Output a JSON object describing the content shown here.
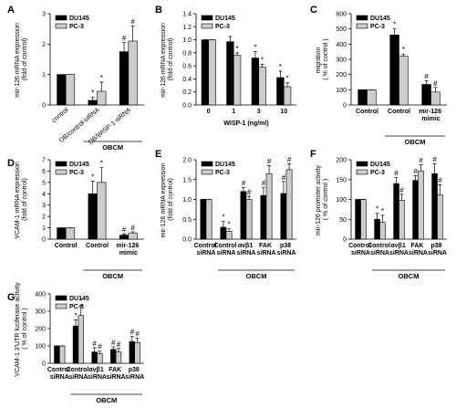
{
  "chart_data": [
    {
      "type": "bar",
      "title": "A",
      "ylabel": "mir-126 mRNA expression (fold of control)",
      "group_label": "OBCM",
      "categories": [
        "control",
        "OB/control-siRNA",
        "OB/WISP-1-siRNA"
      ],
      "ylim": [
        0,
        3
      ],
      "yticks": [
        0,
        1,
        2,
        3
      ],
      "series": [
        {
          "name": "DU145",
          "color": "#000000",
          "values": [
            1,
            0.15,
            1.75
          ],
          "errors": [
            0,
            0.1,
            0.3
          ],
          "significance": [
            null,
            "*",
            "#"
          ]
        },
        {
          "name": "PC-3",
          "color": "#cccccc",
          "values": [
            1,
            0.45,
            2.1
          ],
          "errors": [
            0,
            0.3,
            0.5
          ],
          "significance": [
            null,
            "*",
            "#"
          ]
        }
      ]
    },
    {
      "type": "bar",
      "title": "B",
      "ylabel": "mir-126 mRNA expression (fold of control)",
      "xlabel": "WISP-1 (ng/ml)",
      "categories": [
        "0",
        "1",
        "3",
        "10"
      ],
      "ylim": [
        0,
        1.4
      ],
      "yticks": [
        {
          "value": 0,
          "label": "0.0"
        },
        {
          "value": 0.2,
          "label": "0.2"
        },
        {
          "value": 0.4,
          "label": "0.4"
        },
        {
          "value": 0.6,
          "label": "0.6"
        },
        {
          "value": 0.8,
          "label": "0.8"
        },
        {
          "value": 1,
          "label": "1.0"
        },
        {
          "value": 1.2,
          "label": "1.2"
        },
        {
          "value": 1.4,
          "label": "1.4"
        }
      ],
      "series": [
        {
          "name": "DU145",
          "color": "#000000",
          "values": [
            1,
            0.97,
            0.72,
            0.42
          ],
          "errors": [
            0,
            0.08,
            0.1,
            0.1
          ],
          "significance": [
            null,
            null,
            "*",
            "*"
          ]
        },
        {
          "name": "PC-3",
          "color": "#cccccc",
          "values": [
            1,
            0.76,
            0.58,
            0.28
          ],
          "errors": [
            0,
            0.04,
            0.04,
            0.06
          ],
          "significance": [
            null,
            "*",
            "*",
            "*"
          ]
        }
      ]
    },
    {
      "type": "bar",
      "title": "C",
      "ylabel": "migration ( % of control )",
      "group_label": "OBCM",
      "categories": [
        "Control",
        "Control",
        "mir-126 mimic"
      ],
      "ylim": [
        0,
        600
      ],
      "yticks": [
        0,
        100,
        200,
        300,
        400,
        500,
        600
      ],
      "series": [
        {
          "name": "DU145",
          "color": "#000000",
          "values": [
            100,
            460,
            135
          ],
          "errors": [
            0,
            40,
            25
          ],
          "significance": [
            null,
            "*",
            "#"
          ]
        },
        {
          "name": "PC-3",
          "color": "#cccccc",
          "values": [
            100,
            320,
            85
          ],
          "errors": [
            0,
            15,
            30
          ],
          "significance": [
            null,
            "*",
            "#"
          ]
        }
      ]
    },
    {
      "type": "bar",
      "title": "D",
      "ylabel": "VCAM-1 mRNA expression (fold of control)",
      "group_label": "OBCM",
      "categories": [
        "Control",
        "Control",
        "mir-126 mimic"
      ],
      "ylim": [
        0,
        7
      ],
      "yticks": [
        0,
        1,
        2,
        3,
        4,
        5,
        6,
        7
      ],
      "series": [
        {
          "name": "DU145",
          "color": "#000000",
          "values": [
            1,
            4,
            0.35
          ],
          "errors": [
            0,
            1.1,
            0.1
          ],
          "significance": [
            null,
            "*",
            "#"
          ]
        },
        {
          "name": "PC-3",
          "color": "#cccccc",
          "values": [
            1,
            5,
            0.55
          ],
          "errors": [
            0,
            1.3,
            0.1
          ],
          "significance": [
            null,
            "*",
            "#"
          ]
        }
      ]
    },
    {
      "type": "bar",
      "title": "E",
      "ylabel": "mir-126 mRNA expression (fold of control)",
      "group_label": "OBCM",
      "categories": [
        "Control siRNA",
        "Control siRNA",
        "αvβ1 siRNA",
        "FAK siRNA",
        "p38 siRNA"
      ],
      "ylim": [
        0,
        2
      ],
      "yticks": [
        {
          "value": 0,
          "label": "0.0"
        },
        {
          "value": 0.5,
          "label": "0.5"
        },
        {
          "value": 1,
          "label": "1.0"
        },
        {
          "value": 1.5,
          "label": "1.5"
        },
        {
          "value": 2,
          "label": "2.0"
        }
      ],
      "series": [
        {
          "name": "DU145",
          "color": "#000000",
          "values": [
            1,
            0.3,
            1.2,
            1.1,
            1.15
          ],
          "errors": [
            0,
            0.15,
            0.1,
            0.2,
            0.3
          ],
          "significance": [
            null,
            "*",
            "#",
            "#",
            "#"
          ]
        },
        {
          "name": "PC-3",
          "color": "#cccccc",
          "values": [
            1,
            0.2,
            1.0,
            1.65,
            1.75
          ],
          "errors": [
            0,
            0.06,
            0.08,
            0.2,
            0.15
          ],
          "significance": [
            null,
            "*",
            "#",
            "#",
            "#"
          ]
        }
      ]
    },
    {
      "type": "bar",
      "title": "F",
      "ylabel": "mir-126 promoter activity ( % of control )",
      "group_label": "OBCM",
      "categories": [
        "Control siRNA",
        "Control siRNA",
        "αvβ1 siRNA",
        "FAK siRNA",
        "p38 siRNA"
      ],
      "ylim": [
        0,
        200
      ],
      "yticks": [
        0,
        50,
        100,
        150,
        200
      ],
      "series": [
        {
          "name": "DU145",
          "color": "#000000",
          "values": [
            100,
            50,
            140,
            148,
            165
          ],
          "errors": [
            0,
            15,
            15,
            12,
            25
          ],
          "significance": [
            null,
            "*",
            "#",
            "#",
            "#"
          ]
        },
        {
          "name": "PC-3",
          "color": "#cccccc",
          "values": [
            100,
            42,
            98,
            172,
            112
          ],
          "errors": [
            0,
            18,
            15,
            15,
            25
          ],
          "significance": [
            null,
            "*",
            "#",
            "#",
            "#"
          ]
        }
      ]
    },
    {
      "type": "bar",
      "title": "G",
      "ylabel": "VCAM-1 3'UTR luciferase activity ( % of control )",
      "group_label": "OBCM",
      "categories": [
        "Control siRNA",
        "Control siRNA",
        "αvβ1 siRNA",
        "FAK siRNA",
        "p38 siRNA"
      ],
      "ylim": [
        0,
        400
      ],
      "yticks": [
        0,
        100,
        200,
        300,
        400
      ],
      "series": [
        {
          "name": "DU145",
          "color": "#000000",
          "values": [
            100,
            215,
            65,
            80,
            125
          ],
          "errors": [
            0,
            35,
            25,
            15,
            30
          ],
          "significance": [
            null,
            "*",
            "#",
            "#",
            "#"
          ]
        },
        {
          "name": "PC-3",
          "color": "#cccccc",
          "values": [
            100,
            275,
            55,
            65,
            120
          ],
          "errors": [
            0,
            60,
            15,
            20,
            25
          ],
          "significance": [
            null,
            "*",
            "#",
            "#",
            "#"
          ]
        }
      ]
    }
  ]
}
